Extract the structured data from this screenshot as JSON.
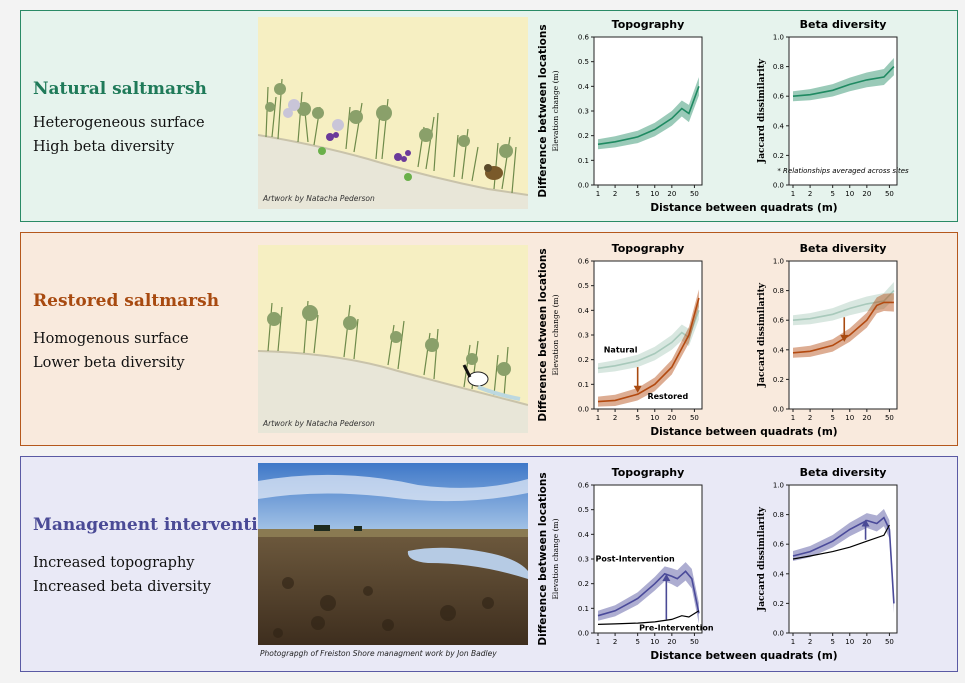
{
  "panels": [
    {
      "title": "Natural  saltmarsh",
      "line1": "Heterogeneous surface",
      "line2": "High beta diversity",
      "credit": "Artwork by Natacha Pederson",
      "accent": "#1f7a59",
      "bg": "#e6f3ed",
      "border": "#2a8a66"
    },
    {
      "title": "Restored saltmarsh",
      "line1": "Homogenous surface",
      "line2": "Lower beta diversity",
      "credit": "Artwork by Natacha Pederson",
      "accent": "#a84a10",
      "bg": "#f9eadd",
      "border": "#b5581c"
    },
    {
      "title": "Management intervention",
      "line1": "Increased topography",
      "line2": "Increased beta diversity",
      "credit": "Photograpgh of Freiston Shore managment work by Jon Badley",
      "accent": "#4a4a96",
      "bg": "#e9e9f6",
      "border": "#5a5aa4"
    }
  ],
  "common": {
    "topography_title": "Topography",
    "beta_title": "Beta diversity",
    "ylabel_main": "Difference between locations",
    "ylabel_topo": "Elevation change (m)",
    "ylabel_beta": "Jaccard dissimilarity",
    "xlabel": "Distance between quadrats (m)",
    "note": "* Relationships averaged across sites",
    "label_natural": "Natural",
    "label_restored": "Restored",
    "label_post": "Post-Intervention",
    "label_pre": "Pre-Intervention"
  },
  "chart_data": [
    {
      "type": "line",
      "panel": "Natural saltmarsh",
      "title": "Topography",
      "xlabel": "Distance between quadrats (m)",
      "ylabel": "Elevation change (m)",
      "xscale": "log",
      "x_ticks": [
        1,
        2,
        5,
        10,
        20,
        50
      ],
      "y_ticks": [
        0.0,
        0.1,
        0.2,
        0.3,
        0.4,
        0.5,
        0.6
      ],
      "ylim": [
        0,
        0.6
      ],
      "series": [
        {
          "color": "#1f8a62",
          "x": [
            1,
            2,
            5,
            10,
            20,
            30,
            40,
            60
          ],
          "y": [
            0.165,
            0.175,
            0.195,
            0.225,
            0.27,
            0.31,
            0.29,
            0.4
          ]
        }
      ]
    },
    {
      "type": "line",
      "panel": "Natural saltmarsh",
      "title": "Beta diversity",
      "xlabel": "Distance between quadrats (m)",
      "ylabel": "Jaccard dissimilarity",
      "xscale": "log",
      "x_ticks": [
        1,
        2,
        5,
        10,
        20,
        50
      ],
      "y_ticks": [
        0.0,
        0.2,
        0.4,
        0.6,
        0.8,
        1.0
      ],
      "ylim": [
        0,
        1.0
      ],
      "series": [
        {
          "color": "#1f8a62",
          "x": [
            1,
            2,
            5,
            10,
            20,
            40,
            60
          ],
          "y": [
            0.6,
            0.61,
            0.64,
            0.68,
            0.71,
            0.73,
            0.8
          ]
        }
      ]
    },
    {
      "type": "line",
      "panel": "Restored saltmarsh",
      "title": "Topography",
      "xlabel": "Distance between quadrats (m)",
      "ylabel": "Elevation change (m)",
      "xscale": "log",
      "x_ticks": [
        1,
        2,
        5,
        10,
        20,
        50
      ],
      "y_ticks": [
        0.0,
        0.1,
        0.2,
        0.3,
        0.4,
        0.5,
        0.6
      ],
      "ylim": [
        0,
        0.6
      ],
      "series": [
        {
          "name": "Natural",
          "color": "#a8c9bb",
          "x": [
            1,
            2,
            5,
            10,
            20,
            30,
            40,
            60
          ],
          "y": [
            0.165,
            0.175,
            0.195,
            0.225,
            0.27,
            0.31,
            0.29,
            0.4
          ]
        },
        {
          "name": "Restored",
          "color": "#b34a10",
          "x": [
            1,
            2,
            5,
            10,
            20,
            40,
            60
          ],
          "y": [
            0.03,
            0.035,
            0.06,
            0.1,
            0.17,
            0.3,
            0.45
          ]
        }
      ]
    },
    {
      "type": "line",
      "panel": "Restored saltmarsh",
      "title": "Beta diversity",
      "xlabel": "Distance between quadrats (m)",
      "ylabel": "Jaccard dissimilarity",
      "xscale": "log",
      "x_ticks": [
        1,
        2,
        5,
        10,
        20,
        50
      ],
      "y_ticks": [
        0.0,
        0.2,
        0.4,
        0.6,
        0.8,
        1.0
      ],
      "ylim": [
        0,
        1.0
      ],
      "series": [
        {
          "color": "#a8c9bb",
          "x": [
            1,
            2,
            5,
            10,
            20,
            40,
            60
          ],
          "y": [
            0.6,
            0.61,
            0.64,
            0.68,
            0.71,
            0.73,
            0.8
          ]
        },
        {
          "color": "#b34a10",
          "x": [
            1,
            2,
            5,
            10,
            20,
            30,
            40,
            60
          ],
          "y": [
            0.38,
            0.39,
            0.43,
            0.5,
            0.6,
            0.7,
            0.72,
            0.72
          ]
        }
      ]
    },
    {
      "type": "line",
      "panel": "Management intervention",
      "title": "Topography",
      "xlabel": "Distance between quadrats (m)",
      "ylabel": "Elevation change (m)",
      "xscale": "log",
      "x_ticks": [
        1,
        2,
        5,
        10,
        20,
        50
      ],
      "y_ticks": [
        0.0,
        0.1,
        0.2,
        0.3,
        0.4,
        0.5,
        0.6
      ],
      "ylim": [
        0,
        0.6
      ],
      "series": [
        {
          "name": "Post-Intervention",
          "color": "#4a4a9a",
          "x": [
            1,
            2,
            5,
            10,
            15,
            20,
            25,
            35,
            45,
            60
          ],
          "y": [
            0.07,
            0.09,
            0.14,
            0.2,
            0.24,
            0.23,
            0.22,
            0.25,
            0.22,
            0.08
          ]
        },
        {
          "name": "Pre-Intervention",
          "color": "#000000",
          "x": [
            1,
            2,
            5,
            10,
            20,
            30,
            40,
            60
          ],
          "y": [
            0.035,
            0.037,
            0.04,
            0.045,
            0.055,
            0.07,
            0.065,
            0.09
          ]
        }
      ]
    },
    {
      "type": "line",
      "panel": "Management intervention",
      "title": "Beta diversity",
      "xlabel": "Distance between quadrats (m)",
      "ylabel": "Jaccard dissimilarity",
      "xscale": "log",
      "x_ticks": [
        1,
        2,
        5,
        10,
        20,
        50
      ],
      "y_ticks": [
        0.0,
        0.2,
        0.4,
        0.6,
        0.8,
        1.0
      ],
      "ylim": [
        0,
        1.0
      ],
      "series": [
        {
          "color": "#4a4a9a",
          "x": [
            1,
            2,
            5,
            10,
            20,
            30,
            40,
            50,
            60
          ],
          "y": [
            0.52,
            0.55,
            0.62,
            0.7,
            0.76,
            0.74,
            0.78,
            0.7,
            0.2
          ]
        },
        {
          "color": "#000000",
          "x": [
            1,
            2,
            5,
            10,
            20,
            40,
            50
          ],
          "y": [
            0.5,
            0.52,
            0.55,
            0.58,
            0.62,
            0.66,
            0.73
          ]
        }
      ]
    }
  ]
}
